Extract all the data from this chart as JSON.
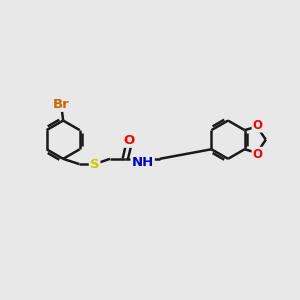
{
  "bg_color": "#e8e8e8",
  "line_color": "#1a1a1a",
  "line_width": 1.8,
  "atom_colors": {
    "Br": "#cc6600",
    "S": "#cccc00",
    "O": "#ff0000",
    "N": "#0000cc",
    "C": "#1a1a1a"
  },
  "font_size_atom": 9.5,
  "font_size_small": 8.5
}
